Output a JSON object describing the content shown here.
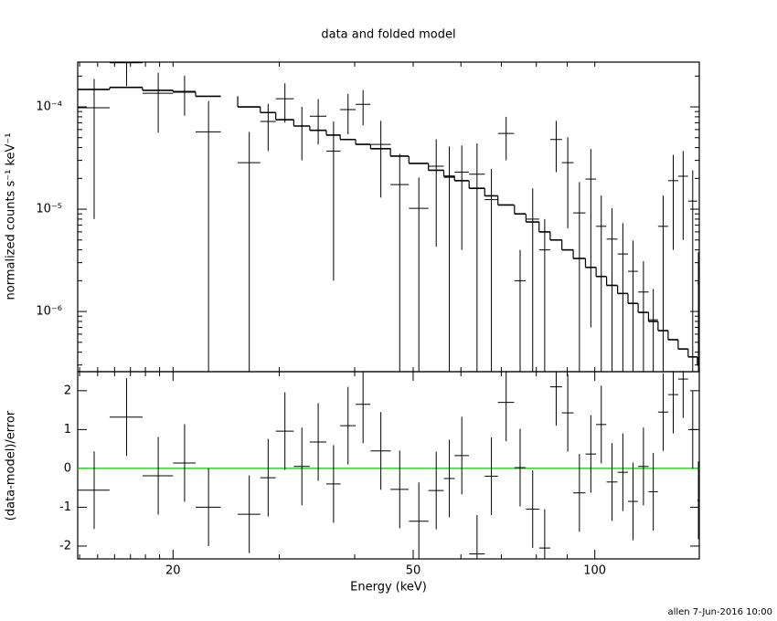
{
  "chart_data": [
    {
      "type": "errorbar",
      "title": "data and folded model",
      "ylabel": "normalized counts s⁻¹ keV⁻¹",
      "log_x": true,
      "log_y": true,
      "xlim": [
        13.9,
        149
      ],
      "ylim": [
        2.58e-07,
        0.000274
      ],
      "xminorticks": [
        14,
        15,
        16,
        17,
        18,
        19,
        20,
        30,
        40,
        50,
        60,
        70,
        80,
        90,
        100
      ],
      "yticks": [
        {
          "value": 1e-06,
          "label": "10⁻⁶"
        },
        {
          "value": 1e-05,
          "label": "10⁻⁵"
        },
        {
          "value": 0.0001,
          "label": "10⁻⁴"
        }
      ],
      "yminorticks": [
        3e-07,
        4e-07,
        5e-07,
        6e-07,
        7e-07,
        8e-07,
        9e-07,
        2e-06,
        3e-06,
        4e-06,
        5e-06,
        6e-06,
        7e-06,
        8e-06,
        9e-06,
        2e-05,
        3e-05,
        4e-05,
        5e-05,
        6e-05,
        7e-05,
        8e-05,
        9e-05,
        0.0002
      ],
      "series": [
        {
          "color": "#000000",
          "x": [
            14.8,
            16.75,
            18.9,
            20.9,
            22.9,
            26.75,
            28.75,
            30.65,
            32.7,
            34.8,
            36.9,
            39.0,
            41.3,
            44.2,
            47.5,
            51.1,
            54.6,
            57.4,
            60.2,
            63.8,
            67.4,
            71.3,
            75.2,
            78.9,
            82.6,
            86.3,
            90.2,
            94.3,
            98.5,
            102.5,
            106.8,
            111.3,
            115.7,
            120.4,
            125.0,
            129.8,
            134.9,
            140.1,
            145.3,
            148.5
          ],
          "xerr": [
            0.9,
            1.05,
            1.1,
            0.9,
            1.1,
            1.15,
            0.85,
            1.05,
            1.0,
            1.1,
            1.0,
            1.15,
            1.15,
            1.7,
            1.65,
            1.9,
            1.6,
            1.2,
            1.65,
            1.9,
            1.7,
            2.2,
            1.6,
            2.0,
            1.75,
            1.95,
            2.0,
            2.2,
            2.0,
            2.0,
            2.2,
            2.2,
            2.2,
            2.4,
            2.25,
            2.5,
            2.6,
            2.65,
            2.5,
            0.6
          ],
          "values": [
            9.8e-05,
            0.00027,
            0.000136,
            0.000142,
            5.7e-05,
            2.85e-05,
            7.2e-05,
            0.00012,
            6.5e-05,
            8.1e-05,
            3.7e-05,
            9.4e-05,
            0.000106,
            4.3e-05,
            1.74e-05,
            1.02e-05,
            2.63e-05,
            2.05e-05,
            2.3e-05,
            2.2e-05,
            1.24e-05,
            5.5e-05,
            2e-06,
            8e-06,
            4e-06,
            4.8e-05,
            2.85e-05,
            9.2e-06,
            1.97e-05,
            6.8e-06,
            5.1e-06,
            3.65e-06,
            2.47e-06,
            1.55e-06,
            8.3e-07,
            6.8e-06,
            1.9e-05,
            2.1e-05,
            1.2e-05,
            1.9e-06
          ],
          "errors": [
            9e-05,
            0.00011,
            8e-05,
            6e-05,
            5.7e-05,
            2.85e-05,
            3.5e-05,
            5e-05,
            3.5e-05,
            3.8e-05,
            3.5e-05,
            4e-05,
            4e-05,
            3e-05,
            1.74e-05,
            1.02e-05,
            2.2e-05,
            2.05e-05,
            1.9e-05,
            2.2e-05,
            1.24e-05,
            2.5e-05,
            2e-06,
            8e-06,
            4e-06,
            2.5e-05,
            2.2e-05,
            9.2e-06,
            1.9e-05,
            6.8e-06,
            5.1e-06,
            3.65e-06,
            2.47e-06,
            1.55e-06,
            8.3e-07,
            6.8e-06,
            1.5e-05,
            1.6e-05,
            1.2e-05,
            1.9e-06
          ]
        }
      ],
      "model": {
        "color": "#000000",
        "values": [
          0.000148,
          0.000155,
          0.000145,
          0.00014,
          0.000127,
          0.0001,
          8.8e-05,
          7.5e-05,
          6.5e-05,
          5.9e-05,
          5.3e-05,
          4.8e-05,
          4.3e-05,
          3.9e-05,
          3.3e-05,
          2.8e-05,
          2.4e-05,
          2.1e-05,
          1.9e-05,
          1.6e-05,
          1.35e-05,
          1.1e-05,
          9e-06,
          7.5e-06,
          6e-06,
          5e-06,
          4e-06,
          3.3e-06,
          2.7e-06,
          2.2e-06,
          1.8e-06,
          1.5e-06,
          1.2e-06,
          9.8e-07,
          8e-07,
          6.5e-07,
          5.3e-07,
          4.3e-07,
          3.6e-07,
          3e-07
        ]
      }
    },
    {
      "type": "errorbar",
      "xlabel": "Energy (keV)",
      "ylabel": "(data-model)/error",
      "log_x": true,
      "log_y": false,
      "xlim": [
        13.9,
        149
      ],
      "ylim": [
        -2.33,
        2.49
      ],
      "xticks": [
        20,
        50,
        100
      ],
      "xminorticks": [
        14,
        15,
        16,
        17,
        18,
        19,
        30,
        40,
        60,
        70,
        80,
        90
      ],
      "yticks": [
        -2,
        -1,
        0,
        1,
        2
      ],
      "reference_line": {
        "value": 0,
        "color": "#00cc00"
      },
      "series": [
        {
          "color": "#000000",
          "x": [
            14.8,
            16.75,
            18.9,
            20.9,
            22.9,
            26.75,
            28.75,
            30.65,
            32.7,
            34.8,
            36.9,
            39.0,
            41.3,
            44.2,
            47.5,
            51.1,
            54.6,
            57.4,
            60.2,
            63.8,
            67.4,
            71.3,
            75.2,
            78.9,
            82.6,
            86.3,
            90.2,
            94.3,
            98.5,
            102.5,
            106.8,
            111.3,
            115.7,
            120.4,
            125.0,
            129.8,
            134.9,
            140.1,
            145.3,
            148.5
          ],
          "xerr": [
            0.9,
            1.05,
            1.1,
            0.9,
            1.1,
            1.15,
            0.85,
            1.05,
            1.0,
            1.1,
            1.0,
            1.15,
            1.15,
            1.7,
            1.65,
            1.9,
            1.6,
            1.2,
            1.65,
            1.9,
            1.7,
            2.2,
            1.6,
            2.0,
            1.75,
            1.95,
            2.0,
            2.2,
            2.0,
            2.0,
            2.2,
            2.2,
            2.2,
            2.4,
            2.25,
            2.5,
            2.6,
            2.65,
            2.5,
            0.6
          ],
          "values": [
            -0.56,
            1.32,
            -0.19,
            0.14,
            -1.0,
            -1.18,
            -0.24,
            0.96,
            0.05,
            0.68,
            -0.4,
            1.1,
            1.65,
            0.45,
            -0.54,
            -1.36,
            -0.57,
            -0.26,
            0.33,
            -2.2,
            -0.2,
            1.7,
            0.02,
            -1.05,
            -2.05,
            2.1,
            1.43,
            -0.63,
            0.37,
            1.13,
            -0.35,
            -0.1,
            -0.85,
            0.05,
            -0.6,
            1.45,
            1.9,
            2.3,
            1.0,
            -0.82
          ],
          "errors": [
            1,
            1,
            1,
            1,
            1,
            1,
            1,
            1,
            1,
            1,
            1,
            1,
            1,
            1,
            1,
            1,
            1,
            1,
            1,
            1,
            1,
            1,
            1,
            1,
            1,
            1,
            1,
            1,
            1,
            1,
            1,
            1,
            1,
            1,
            1,
            1,
            1,
            1,
            1,
            1
          ]
        }
      ]
    }
  ],
  "footer": "allen  7-Jun-2016 10:00"
}
